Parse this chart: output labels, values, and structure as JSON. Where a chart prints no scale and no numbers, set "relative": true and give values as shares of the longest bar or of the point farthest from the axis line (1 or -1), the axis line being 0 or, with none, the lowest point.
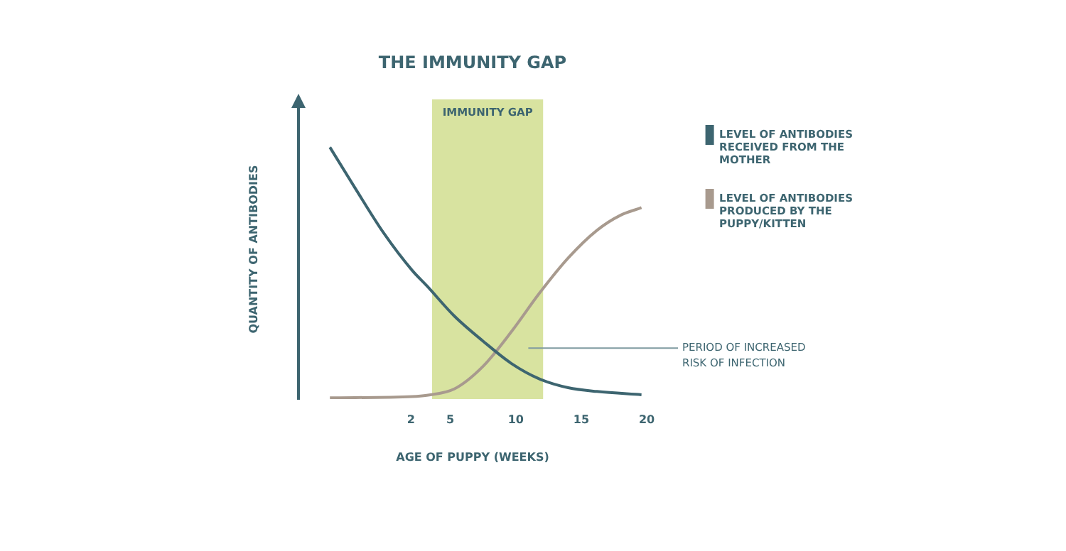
{
  "chart_data": {
    "type": "line",
    "title": "THE IMMUNITY GAP",
    "xlabel": "AGE OF PUPPY (WEEKS)",
    "ylabel": "QUANTITY OF ANTIBODIES",
    "relative": true,
    "xlim": [
      -6.6,
      20
    ],
    "xticks": [
      2,
      5,
      10,
      15,
      20
    ],
    "grid": false,
    "legend": "right",
    "marker": "none",
    "line_style": "solid",
    "series": [
      {
        "name": "LEVEL OF ANTIBODIES RECEIVED FROM THE MOTHER",
        "color": "#3d6570",
        "x": [
          -4.2,
          -2.3,
          -0.1,
          2.1,
          3.2,
          5.3,
          7.5,
          9.7,
          11.8,
          14,
          16.2,
          19.6
        ],
        "values": [
          1,
          0.84,
          0.66,
          0.51,
          0.45,
          0.33,
          0.23,
          0.14,
          0.08,
          0.045,
          0.03,
          0.017
        ]
      },
      {
        "name": "LEVEL OF ANTIBODIES PRODUCED BY THE PUPPY/KITTEN",
        "color": "#a89a8e",
        "x": [
          -4.2,
          2.1,
          3.2,
          5.3,
          7.5,
          9.7,
          11.8,
          14,
          16.2,
          18,
          19.6
        ],
        "values": [
          0.005,
          0.01,
          0.015,
          0.04,
          0.13,
          0.27,
          0.42,
          0.56,
          0.67,
          0.73,
          0.76
        ]
      }
    ],
    "bands": [
      {
        "axis": "x",
        "from": 3.6,
        "to": 12.1,
        "label": "IMMUNITY GAP",
        "color": "#d8e3a0"
      }
    ],
    "annotations": [
      "PERIOD OF INCREASED RISK OF INFECTION"
    ]
  }
}
